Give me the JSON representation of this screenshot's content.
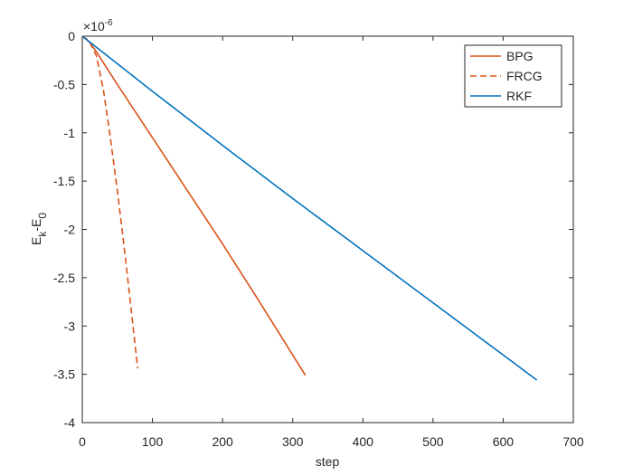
{
  "chart_data": {
    "type": "line",
    "xlabel": "step",
    "ylabel_parts": [
      "E",
      "k",
      "-E",
      "0"
    ],
    "y_multiplier": "×10",
    "y_multiplier_exponent": "-6",
    "xlim": [
      0,
      700
    ],
    "xticks": [
      0,
      100,
      200,
      300,
      400,
      500,
      600,
      700
    ],
    "ylim": [
      -4,
      0
    ],
    "yticks": [
      -4,
      -3.5,
      -3,
      -2.5,
      -2,
      -1.5,
      -1,
      -0.5,
      0
    ],
    "legend_position": "top-right",
    "series": [
      {
        "name": "BPG",
        "color": "#d95319",
        "linestyle": "solid",
        "x": [
          0,
          10,
          20,
          50,
          100,
          150,
          200,
          250,
          300,
          318
        ],
        "values": [
          0,
          -0.06,
          -0.16,
          -0.5,
          -1.05,
          -1.6,
          -2.15,
          -2.72,
          -3.3,
          -3.51
        ]
      },
      {
        "name": "FRCG",
        "color": "#d95319",
        "linestyle": "dashed",
        "x": [
          0,
          10,
          20,
          30,
          40,
          50,
          60,
          70,
          79
        ],
        "values": [
          0,
          -0.05,
          -0.2,
          -0.55,
          -1.05,
          -1.6,
          -2.2,
          -2.85,
          -3.44
        ]
      },
      {
        "name": "RKF",
        "color": "#0072bd",
        "linestyle": "solid",
        "x": [
          0,
          100,
          200,
          300,
          400,
          500,
          600,
          648
        ],
        "values": [
          0,
          -0.57,
          -1.13,
          -1.68,
          -2.22,
          -2.76,
          -3.3,
          -3.56
        ]
      }
    ]
  }
}
